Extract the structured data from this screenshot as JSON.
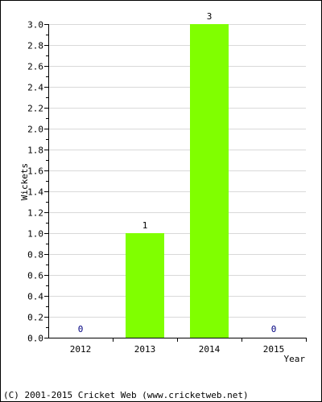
{
  "chart_data": {
    "type": "bar",
    "categories": [
      "2012",
      "2013",
      "2014",
      "2015"
    ],
    "values": [
      0,
      1,
      3,
      0
    ],
    "data_labels": [
      "0",
      "1",
      "3",
      "0"
    ],
    "ylim": [
      0,
      3.0
    ],
    "y_ticks": [
      "0.0",
      "0.2",
      "0.4",
      "0.6",
      "0.8",
      "1.0",
      "1.2",
      "1.4",
      "1.6",
      "1.8",
      "2.0",
      "2.2",
      "2.4",
      "2.6",
      "2.8",
      "3.0"
    ],
    "ylabel": "Wickets",
    "xlabel": "Year",
    "grid": true,
    "colors": {
      "bar": "#80ff00",
      "grid": "#d9d9d9",
      "zero_label": "#000080",
      "value_label": "#000000"
    }
  },
  "footer": {
    "copyright": "(C) 2001-2015 Cricket Web (www.cricketweb.net)"
  }
}
